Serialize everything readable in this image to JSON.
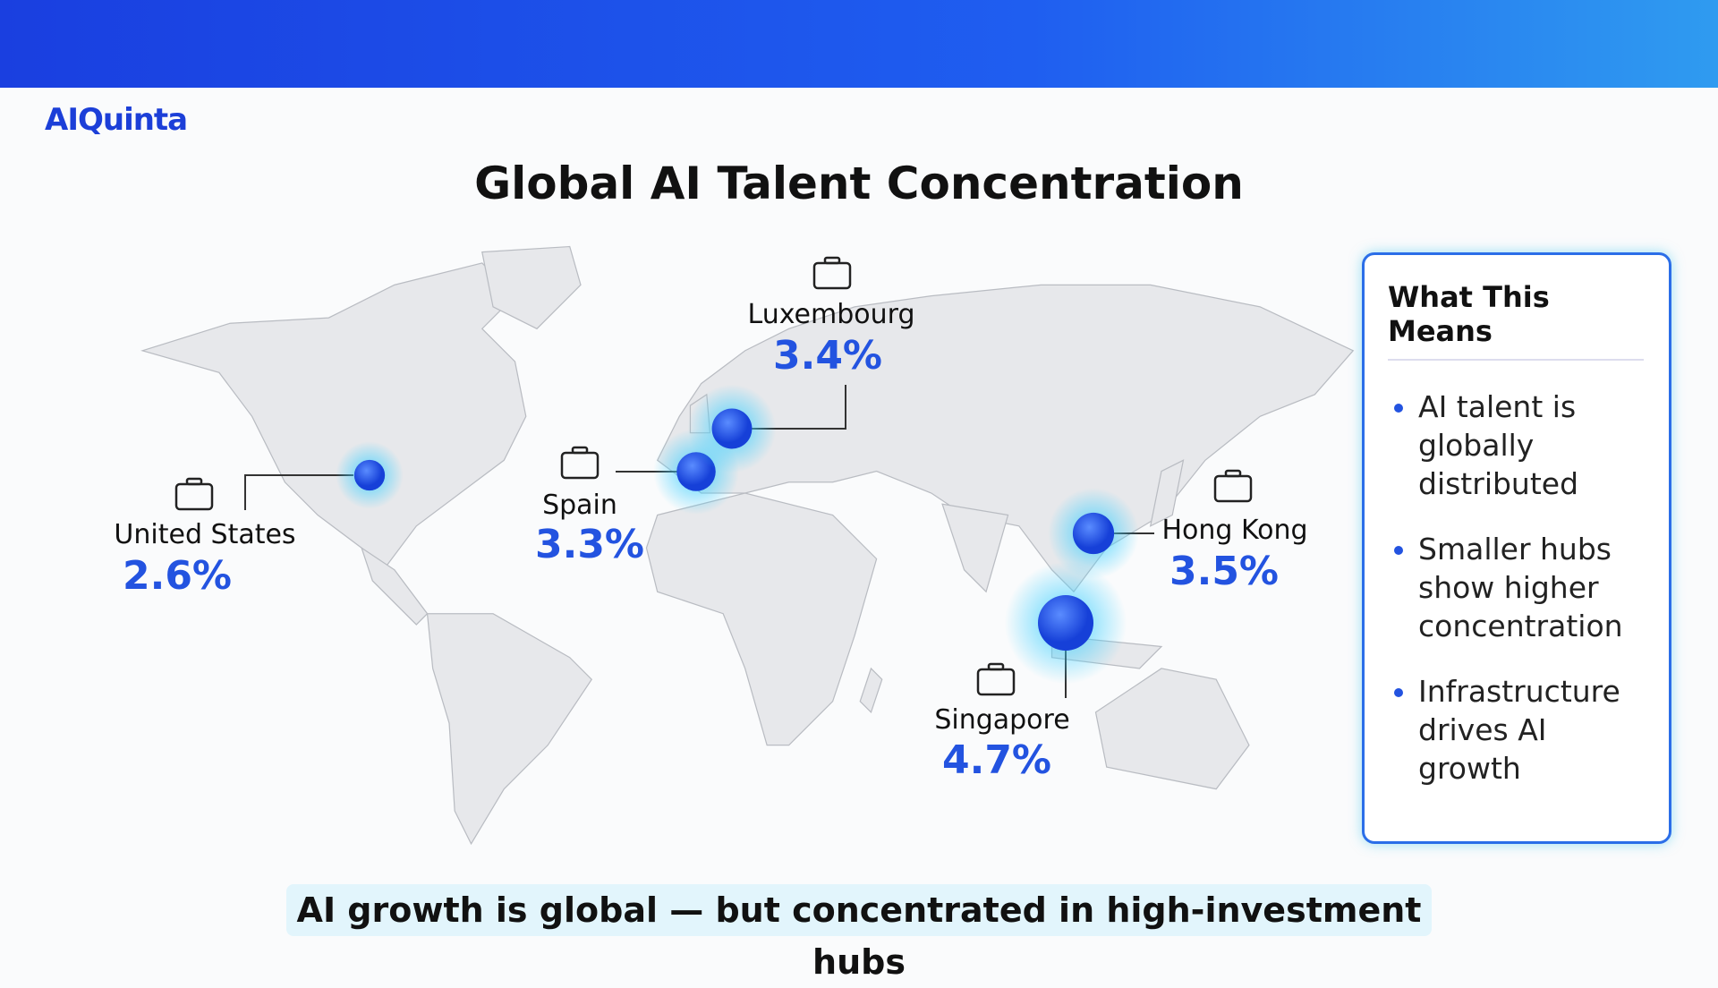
{
  "header": {
    "logo": "AIQuinta",
    "title": "Global AI Talent Concentration"
  },
  "hubs": [
    {
      "name": "United States",
      "value": 2.6,
      "value_label": "2.6%"
    },
    {
      "name": "Spain",
      "value": 3.3,
      "value_label": "3.3%"
    },
    {
      "name": "Luxembourg",
      "value": 3.4,
      "value_label": "3.4%"
    },
    {
      "name": "Hong Kong",
      "value": 3.5,
      "value_label": "3.5%"
    },
    {
      "name": "Singapore",
      "value": 4.7,
      "value_label": "4.7%"
    }
  ],
  "panel": {
    "title": "What This Means",
    "bullets": [
      "AI talent is globally distributed",
      "Smaller hubs show higher concentration",
      "Infrastructure drives AI growth"
    ]
  },
  "caption": "AI growth is global — but concentrated in high-investment hubs"
}
